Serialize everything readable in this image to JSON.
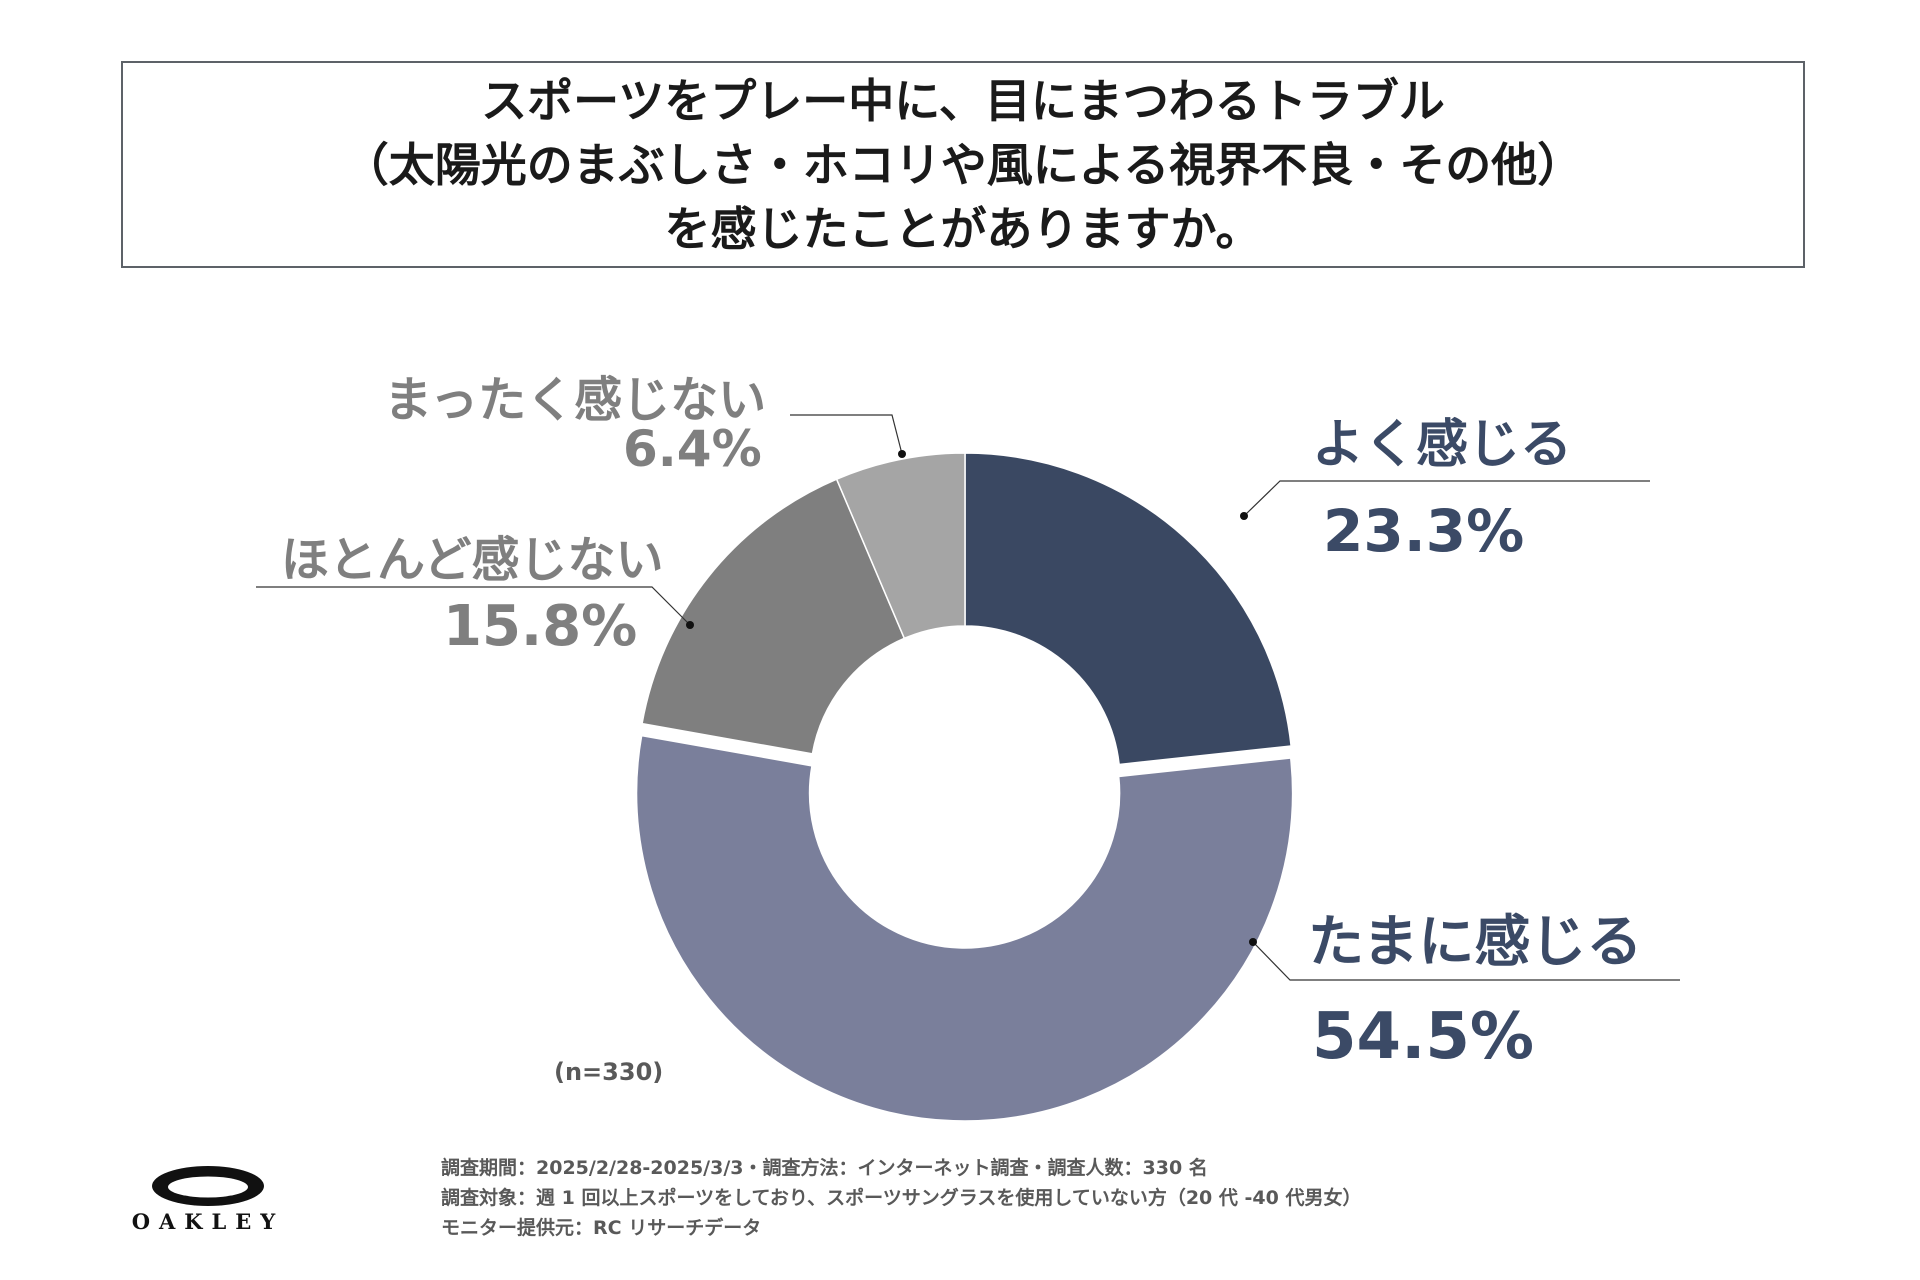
{
  "title": {
    "line1": "スポーツをプレー中に、目にまつわるトラブル",
    "line2": "（太陽光のまぶしさ・ホコリや風による視界不良・その他）",
    "line3": "を感じたことがありますか。"
  },
  "chart_data": {
    "type": "pie",
    "variant": "donut",
    "slices": [
      {
        "label": "よく感じる",
        "value": 23.3,
        "value_text": "23.3%",
        "color": "#3a4862"
      },
      {
        "label": "たまに感じる",
        "value": 54.5,
        "value_text": "54.5%",
        "color": "#7a7f9b"
      },
      {
        "label": "ほとんど感じない",
        "value": 15.8,
        "value_text": "15.8%",
        "color": "#7f7f7f"
      },
      {
        "label": "まったく感じない",
        "value": 6.4,
        "value_text": "6.4%",
        "color": "#a5a5a5"
      }
    ],
    "exploded": "たまに感じる",
    "sample_size": "(n=330)"
  },
  "colors": {
    "dark_label": "#3b4a66",
    "gray_label": "#7f7f7f",
    "leader": "#333333"
  },
  "footer": {
    "line1": "調査期間：2025/2/28-2025/3/3・調査方法：インターネット調査・調査人数：330 名",
    "line2": "調査対象：週 1 回以上スポーツをしており、スポーツサングラスを使用していない方（20 代 -40 代男女）",
    "line3": "モニター提供元：RC リサーチデータ"
  },
  "logo": {
    "text": "OAKLEY",
    "icon": "oakley-ellipse-logo"
  }
}
